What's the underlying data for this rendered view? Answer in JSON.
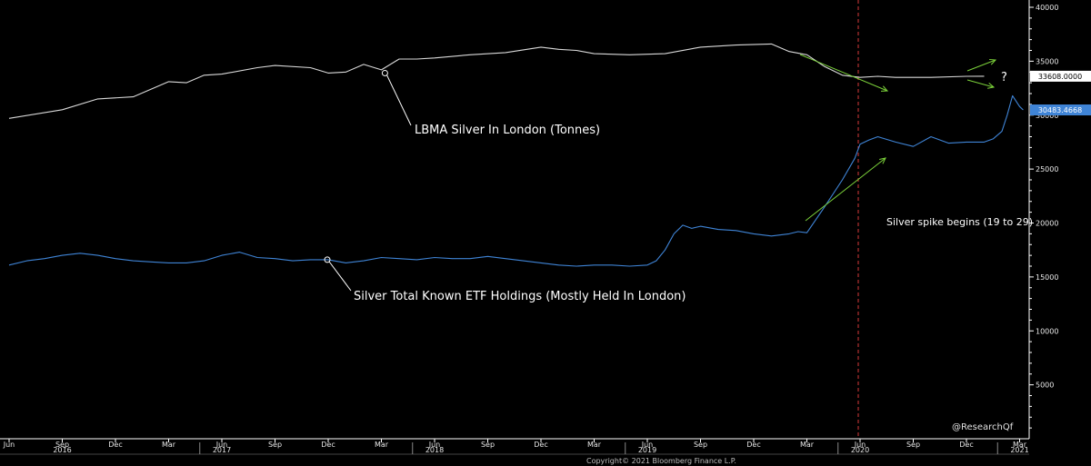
{
  "chart_data": {
    "type": "line",
    "title": "",
    "xlabel": "",
    "ylabel": "",
    "ylim": [
      0,
      40000
    ],
    "y_ticks": [
      5000,
      10000,
      15000,
      20000,
      25000,
      30000,
      35000,
      40000
    ],
    "y_tick_labels": [
      "5000",
      "10000",
      "15000",
      "20000",
      "25000",
      "30000",
      "35000",
      "40000"
    ],
    "x_tick_labels": [
      "Jun",
      "Sep",
      "Dec",
      "Mar",
      "Jun",
      "Sep",
      "Dec",
      "Mar",
      "Jun",
      "Sep",
      "Dec",
      "Mar",
      "Jun",
      "Sep",
      "Dec",
      "Mar",
      "Jun",
      "Sep",
      "Dec",
      "Mar"
    ],
    "x_tick_months": [
      0,
      3,
      6,
      9,
      12,
      15,
      18,
      21,
      24,
      27,
      30,
      33,
      36,
      39,
      42,
      45,
      48,
      51,
      54,
      57
    ],
    "years": [
      {
        "label": "2016",
        "month": 3
      },
      {
        "label": "2017",
        "month": 12
      },
      {
        "label": "2018",
        "month": 24
      },
      {
        "label": "2019",
        "month": 36
      },
      {
        "label": "2020",
        "month": 48
      },
      {
        "label": "2021",
        "month": 57
      }
    ],
    "series": [
      {
        "name": "LBMA Silver In London (Tonnes)",
        "color": "#d9d9d9",
        "x": [
          0,
          3,
          5,
          7,
          9,
          10,
          11,
          12,
          14,
          15,
          17,
          18,
          19,
          20,
          21,
          22,
          23,
          24,
          26,
          28,
          30,
          31,
          32,
          33,
          35,
          37,
          39,
          41,
          43,
          44,
          45,
          46,
          47,
          48,
          49,
          50,
          51,
          52,
          54,
          55
        ],
        "values": [
          29700,
          30500,
          31500,
          31700,
          33100,
          33000,
          33700,
          33800,
          34400,
          34600,
          34400,
          33900,
          34000,
          34700,
          34200,
          35200,
          35200,
          35300,
          35600,
          35800,
          36300,
          36100,
          36000,
          35700,
          35600,
          35700,
          36300,
          36500,
          36600,
          35900,
          35600,
          34500,
          33700,
          33500,
          33600,
          33500,
          33500,
          33500,
          33600,
          33608
        ]
      },
      {
        "name": "Silver Total Known ETF Holdings (Mostly Held In London)",
        "color": "#3f84d6",
        "x": [
          0,
          1,
          2,
          3,
          4,
          5,
          6,
          7,
          8,
          9,
          10,
          11,
          12,
          13,
          14,
          15,
          16,
          17,
          18,
          19,
          20,
          21,
          22,
          23,
          24,
          25,
          26,
          27,
          28,
          29,
          30,
          31,
          32,
          33,
          34,
          35,
          36,
          36.5,
          37,
          37.5,
          38,
          38.5,
          39,
          40,
          41,
          42,
          43,
          44,
          44.5,
          45,
          46,
          47,
          47.7,
          48,
          48.5,
          49,
          50,
          51,
          52,
          53,
          54,
          55,
          55.5,
          56,
          56.3,
          56.6,
          57,
          57.2
        ],
        "values": [
          16100,
          16500,
          16700,
          17000,
          17200,
          17000,
          16700,
          16500,
          16400,
          16300,
          16300,
          16500,
          17000,
          17300,
          16800,
          16700,
          16500,
          16600,
          16600,
          16300,
          16500,
          16800,
          16700,
          16600,
          16800,
          16700,
          16700,
          16900,
          16700,
          16500,
          16300,
          16100,
          16000,
          16100,
          16100,
          16000,
          16100,
          16500,
          17500,
          19000,
          19800,
          19500,
          19700,
          19400,
          19300,
          19000,
          18800,
          19000,
          19200,
          19100,
          21500,
          24000,
          26000,
          27300,
          27700,
          28000,
          27500,
          27100,
          28000,
          27400,
          27500,
          27500,
          27800,
          28500,
          30000,
          31800,
          30800,
          30483
        ]
      }
    ],
    "last_value_tags": [
      {
        "series": "LBMA Silver In London (Tonnes)",
        "value": 33608,
        "label": "33608.0000"
      },
      {
        "series": "Silver Total Known ETF Holdings (Mostly Held In London)",
        "value": 30483.4668,
        "label": "30483.4668"
      }
    ],
    "event_line_month": 48,
    "annotations": {
      "lbma_label": "LBMA Silver In London (Tonnes)",
      "etf_label": "Silver Total Known ETF Holdings (Mostly Held In London)",
      "spike_label": "Silver spike begins (19 to 29)",
      "question_mark": "?",
      "handle": "@ResearchQf",
      "copyright": "Copyright© 2021 Bloomberg Finance L.P."
    },
    "colors": {
      "background": "#000000",
      "axis": "#ffffff",
      "event_line": "#d83a3a",
      "arrow": "#7bd13a",
      "lbma_tag_bg": "#ffffff",
      "etf_tag_bg": "#3f84d6"
    }
  }
}
